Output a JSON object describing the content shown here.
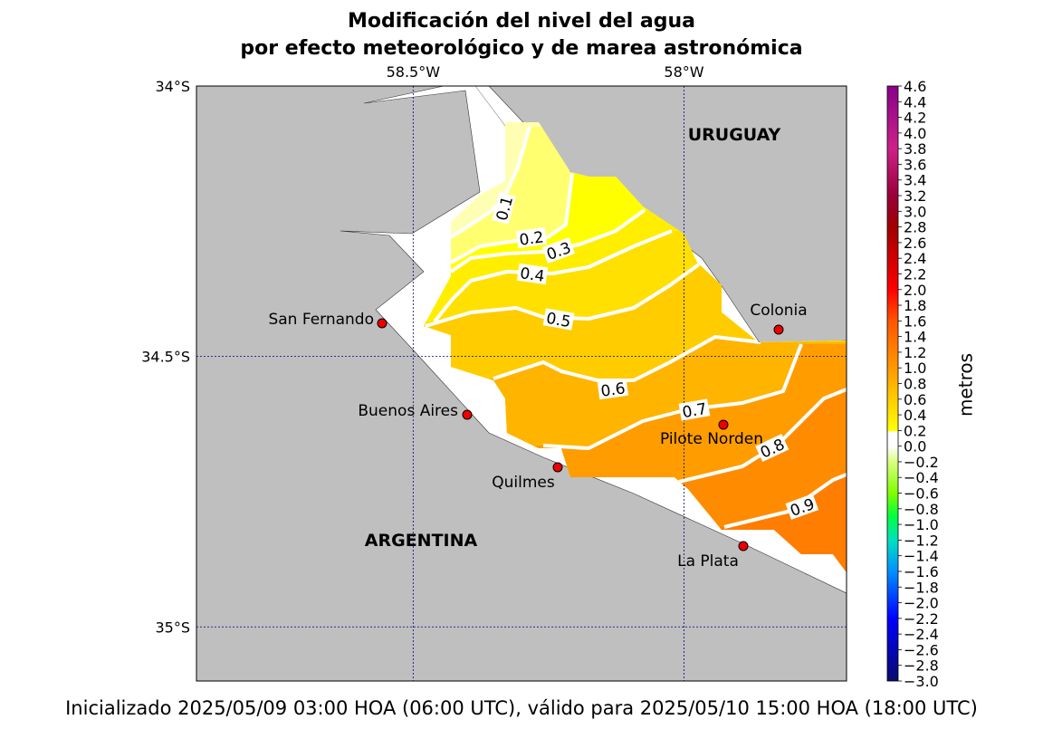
{
  "title": [
    "Modificación del nivel del agua",
    "por efecto meteorológico y de marea astronómica"
  ],
  "footer": "Inicializado 2025/05/09 03:00 HOA (06:00 UTC), válido para 2025/05/10 15:00 HOA (18:00 UTC)",
  "map": {
    "lonlim": [
      -58.9,
      -57.7
    ],
    "latlim": [
      -35.1,
      -34.0
    ],
    "lon_ticks": [
      {
        "value": -58.5,
        "label": "58.5°W"
      },
      {
        "value": -58.0,
        "label": "58°W"
      }
    ],
    "lat_ticks": [
      {
        "value": -34.0,
        "label": "34°S"
      },
      {
        "value": -34.5,
        "label": "34.5°S"
      },
      {
        "value": -35.0,
        "label": "35°S"
      }
    ],
    "countries": [
      "URUGUAY",
      "ARGENTINA"
    ],
    "cities": [
      "San Fernando",
      "Buenos Aires",
      "Quilmes",
      "Colonia",
      "Pilote Norden",
      "La Plata"
    ],
    "contour_levels": [
      0.1,
      0.2,
      0.3,
      0.4,
      0.5,
      0.6,
      0.7,
      0.8,
      0.9
    ]
  },
  "colorbar": {
    "label": "metros",
    "clim": [
      -3.0,
      4.6
    ],
    "colormap": [
      {
        "value": -3.0,
        "color": "#0a0a6e"
      },
      {
        "value": -2.2,
        "color": "#0000ff"
      },
      {
        "value": -1.6,
        "color": "#0090ff"
      },
      {
        "value": -1.2,
        "color": "#00e0c0"
      },
      {
        "value": -0.9,
        "color": "#00ff40"
      },
      {
        "value": -0.6,
        "color": "#80ff00"
      },
      {
        "value": -0.2,
        "color": "#d8ff80"
      },
      {
        "value": 0.0,
        "color": "#ffffff"
      },
      {
        "value": 0.18,
        "color": "#ffffff"
      },
      {
        "value": 0.2,
        "color": "#ffff00"
      },
      {
        "value": 1.0,
        "color": "#ff9900"
      },
      {
        "value": 1.6,
        "color": "#ff5500"
      },
      {
        "value": 2.0,
        "color": "#ff0000"
      },
      {
        "value": 2.8,
        "color": "#a00000"
      },
      {
        "value": 3.2,
        "color": "#99003a"
      },
      {
        "value": 3.8,
        "color": "#cc2288"
      },
      {
        "value": 4.6,
        "color": "#880088"
      }
    ],
    "ticks": [
      {
        "value": -3.0,
        "label": "−3.0"
      },
      {
        "value": -2.8,
        "label": "−2.8"
      },
      {
        "value": -2.6,
        "label": "−2.6"
      },
      {
        "value": -2.4,
        "label": "−2.4"
      },
      {
        "value": -2.2,
        "label": "−2.2"
      },
      {
        "value": -2.0,
        "label": "−2.0"
      },
      {
        "value": -1.8,
        "label": "−1.8"
      },
      {
        "value": -1.6,
        "label": "−1.6"
      },
      {
        "value": -1.4,
        "label": "−1.4"
      },
      {
        "value": -1.2,
        "label": "−1.2"
      },
      {
        "value": -1.0,
        "label": "−1.0"
      },
      {
        "value": -0.8,
        "label": "−0.8"
      },
      {
        "value": -0.6,
        "label": "−0.6"
      },
      {
        "value": -0.4,
        "label": "−0.4"
      },
      {
        "value": -0.2,
        "label": "−0.2"
      },
      {
        "value": 0,
        "label": "0.0"
      },
      0.2,
      0.4,
      0.6,
      0.8,
      {
        "value": 1,
        "label": "1.0"
      },
      1.2,
      1.4,
      1.6,
      1.8,
      {
        "value": 2,
        "label": "2.0"
      },
      2.2,
      2.4,
      2.6,
      2.8,
      {
        "value": 3,
        "label": "3.0"
      },
      3.2,
      3.4,
      3.6,
      3.8,
      {
        "value": 4,
        "label": "4.0"
      },
      4.2,
      4.4,
      4.6
    ]
  }
}
